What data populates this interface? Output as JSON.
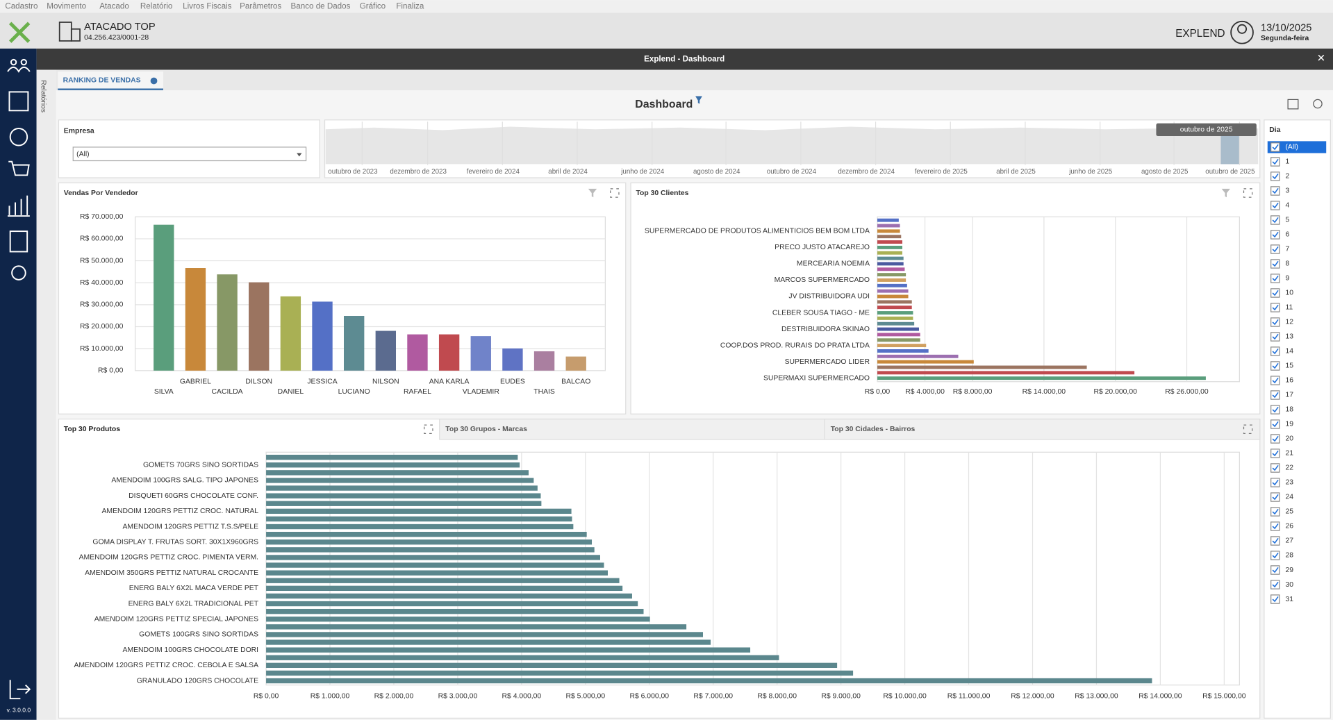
{
  "menu": [
    "Cadastro",
    "Movimento",
    "Atacado",
    "Relatório",
    "Livros Fiscais",
    "Parâmetros",
    "Banco de Dados",
    "Gráfico",
    "Finaliza"
  ],
  "header": {
    "company": "ATACADO TOP",
    "cnpj": "04.256.423/0001-28",
    "user": "EXPLEND",
    "date": "13/10/2025",
    "weekday": "Segunda-feira"
  },
  "sidebar": {
    "label": "Relatórios",
    "version": "v. 3.0.0.0"
  },
  "window": {
    "title": "Explend - Dashboard",
    "tab": "RANKING DE VENDAS"
  },
  "dashboard": {
    "title": "Dashboard"
  },
  "filters": {
    "empresa": {
      "label": "Empresa",
      "value": "(All)"
    },
    "range": {
      "labels": [
        "outubro de 2023",
        "dezembro de 2023",
        "fevereiro de 2024",
        "abril de 2024",
        "junho de 2024",
        "agosto de 2024",
        "outubro de 2024",
        "dezembro de 2024",
        "fevereiro de 2025",
        "abril de 2025",
        "junho de 2025",
        "agosto de 2025",
        "outubro de 2025"
      ],
      "tooltip": "outubro de 2025"
    },
    "dia": {
      "label": "Dia",
      "all": "(All)",
      "days": [
        1,
        2,
        3,
        4,
        5,
        6,
        7,
        8,
        9,
        10,
        11,
        12,
        13,
        14,
        15,
        16,
        17,
        18,
        19,
        20,
        21,
        22,
        23,
        24,
        25,
        26,
        27,
        28,
        29,
        30,
        31
      ]
    }
  },
  "tabs": [
    "Top 30 Produtos",
    "Top 30 Grupos - Marcas",
    "Top 30 Cidades - Bairros"
  ],
  "chart_data": [
    {
      "type": "bar",
      "title": "Vendas Por Vendedor",
      "categories": [
        "SILVA",
        "GABRIEL",
        "CACILDA",
        "DILSON",
        "DANIEL",
        "JESSICA",
        "LUCIANO",
        "NILSON",
        "RAFAEL",
        "ANA KARLA",
        "VLADEMIR",
        "EUDES",
        "THAIS",
        "BALCAO"
      ],
      "values": [
        66400,
        46700,
        43800,
        40200,
        33800,
        31400,
        24900,
        18100,
        16500,
        16500,
        15700,
        10100,
        8800,
        6400
      ],
      "colors": [
        "#5a9e7c",
        "#c8883a",
        "#879866",
        "#9b7460",
        "#a9b054",
        "#5470c6",
        "#5d8b92",
        "#5b6b8f",
        "#b05aa0",
        "#c04a4f",
        "#7083c9",
        "#5f73c4",
        "#aa7fa0",
        "#c69c6d"
      ],
      "ylim": [
        0,
        70000
      ],
      "yticks": [
        {
          "value": 0,
          "label": "R$ 0,00"
        },
        {
          "value": 10000,
          "label": "R$ 10.000,00"
        },
        {
          "value": 20000,
          "label": "R$ 20.000,00"
        },
        {
          "value": 30000,
          "label": "R$ 30.000,00"
        },
        {
          "value": 40000,
          "label": "R$ 40.000,00"
        },
        {
          "value": 50000,
          "label": "R$ 50.000,00"
        },
        {
          "value": 60000,
          "label": "R$ 60.000,00"
        },
        {
          "value": 70000,
          "label": "R$ 70.000,00"
        }
      ],
      "grid": true
    },
    {
      "type": "hbar",
      "title": "Top 30 Clientes",
      "categories": [
        null,
        null,
        "SUPERMERCADO DE PRODUTOS ALIMENTICIOS BEM BOM LTDA",
        null,
        null,
        "PRECO JUSTO ATACAREJO",
        null,
        null,
        "MERCEARIA NOEMIA",
        null,
        null,
        "MARCOS SUPERMERCADO",
        null,
        null,
        "JV DISTRIBUIDORA UDI",
        null,
        null,
        "CLEBER SOUSA TIAGO - ME",
        null,
        null,
        "DESTRIBUIDORA SKINAO",
        null,
        null,
        "COOP.DOS PROD. RURAIS DO PRATA LTDA",
        null,
        null,
        "SUPERMERCADO LIDER",
        null,
        null,
        "SUPERMAXI SUPERMERCADO"
      ],
      "values": [
        1800,
        1900,
        1900,
        2000,
        2100,
        2100,
        2100,
        2200,
        2200,
        2300,
        2400,
        2400,
        2500,
        2600,
        2600,
        2900,
        2900,
        3000,
        3000,
        3100,
        3500,
        3600,
        3600,
        4100,
        4300,
        6800,
        8100,
        17600,
        21600,
        27600
      ],
      "colors": [
        "#5470c6",
        "#9c6fb0",
        "#c8883a",
        "#9b7460",
        "#c04a4f",
        "#5a9e7c",
        "#a9b054",
        "#5d8b92",
        "#4a5aa0",
        "#b05aa0",
        "#879866",
        "#d0a060"
      ],
      "xlim": [
        0,
        30000
      ],
      "xticks": [
        {
          "value": 0,
          "label": "R$ 0,00"
        },
        {
          "value": 4000,
          "label": "R$ 4.000,00"
        },
        {
          "value": 8000,
          "label": "R$ 8.000,00"
        },
        {
          "value": 14000,
          "label": "R$ 14.000,00"
        },
        {
          "value": 20000,
          "label": "R$ 20.000,00"
        },
        {
          "value": 26000,
          "label": "R$ 26.000,00"
        }
      ],
      "grid": true
    },
    {
      "type": "hbar",
      "categories": [
        null,
        "GOMETS 70GRS SINO SORTIDAS",
        null,
        "AMENDOIM 100GRS SALG. TIPO JAPONES",
        null,
        "DISQUETI 60GRS CHOCOLATE CONF.",
        null,
        "AMENDOIM 120GRS PETTIZ CROC. NATURAL",
        null,
        "AMENDOIM 120GRS PETTIZ T.S.S/PELE",
        null,
        "GOMA DISPLAY T. FRUTAS SORT. 30X1X960GRS",
        null,
        "AMENDOIM 120GRS PETTIZ CROC. PIMENTA VERM.",
        null,
        "AMENDOIM 350GRS PETTIZ NATURAL CROCANTE",
        null,
        "ENERG BALY 6X2L MACA VERDE PET",
        null,
        "ENERG BALY 6X2L TRADICIONAL PET",
        null,
        "AMENDOIM 120GRS PETTIZ SPECIAL JAPONES",
        null,
        "GOMETS 100GRS SINO SORTIDAS",
        null,
        "AMENDOIM 100GRS CHOCOLATE DORI",
        null,
        "AMENDOIM 120GRS PETTIZ CROC. CEBOLA E SALSA",
        null,
        "GRANULADO 120GRS CHOCOLATE"
      ],
      "values": [
        3940,
        3970,
        4110,
        4190,
        4250,
        4300,
        4310,
        4780,
        4790,
        4810,
        5020,
        5100,
        5140,
        5230,
        5290,
        5350,
        5530,
        5580,
        5730,
        5820,
        5910,
        6010,
        6580,
        6840,
        6960,
        7580,
        8030,
        8940,
        9190,
        13870
      ],
      "colors": [
        "#5b878d"
      ],
      "xlim": [
        0,
        15000
      ],
      "xticks": [
        {
          "value": 0,
          "label": "R$ 0,00"
        },
        {
          "value": 1000,
          "label": "R$ 1.000,00"
        },
        {
          "value": 2000,
          "label": "R$ 2.000,00"
        },
        {
          "value": 3000,
          "label": "R$ 3.000,00"
        },
        {
          "value": 4000,
          "label": "R$ 4.000,00"
        },
        {
          "value": 5000,
          "label": "R$ 5.000,00"
        },
        {
          "value": 6000,
          "label": "R$ 6.000,00"
        },
        {
          "value": 7000,
          "label": "R$ 7.000,00"
        },
        {
          "value": 8000,
          "label": "R$ 8.000,00"
        },
        {
          "value": 9000,
          "label": "R$ 9.000,00"
        },
        {
          "value": 10000,
          "label": "R$ 10.000,00"
        },
        {
          "value": 11000,
          "label": "R$ 11.000,00"
        },
        {
          "value": 12000,
          "label": "R$ 12.000,00"
        },
        {
          "value": 13000,
          "label": "R$ 13.000,00"
        },
        {
          "value": 14000,
          "label": "R$ 14.000,00"
        },
        {
          "value": 15000,
          "label": "R$ 15.000,00"
        }
      ],
      "grid": true
    }
  ]
}
